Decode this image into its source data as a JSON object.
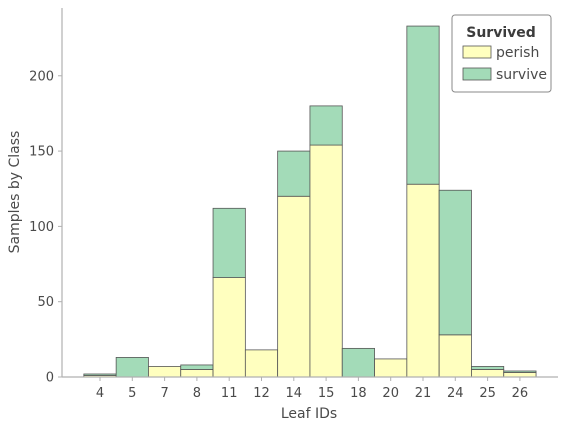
{
  "chart_data": {
    "type": "bar",
    "stacked": true,
    "xlabel": "Leaf IDs",
    "ylabel": "Samples by Class",
    "categories": [
      "4",
      "5",
      "7",
      "8",
      "11",
      "12",
      "14",
      "15",
      "18",
      "20",
      "21",
      "24",
      "25",
      "26"
    ],
    "series": [
      {
        "name": "perish",
        "color": "#ffffbf",
        "values": [
          1,
          0,
          7,
          5,
          66,
          18,
          120,
          154,
          0,
          12,
          128,
          28,
          5,
          3
        ]
      },
      {
        "name": "survive",
        "color": "#a3dbb8",
        "values": [
          1,
          13,
          0,
          3,
          46,
          0,
          30,
          26,
          19,
          0,
          105,
          96,
          2,
          1
        ]
      }
    ],
    "ylim": [
      0,
      245
    ],
    "yticks": [
      0,
      50,
      100,
      150,
      200
    ],
    "legend": {
      "title": "Survived",
      "placement": "top-right"
    },
    "grid": false,
    "bar_edge_color": "#555555"
  }
}
